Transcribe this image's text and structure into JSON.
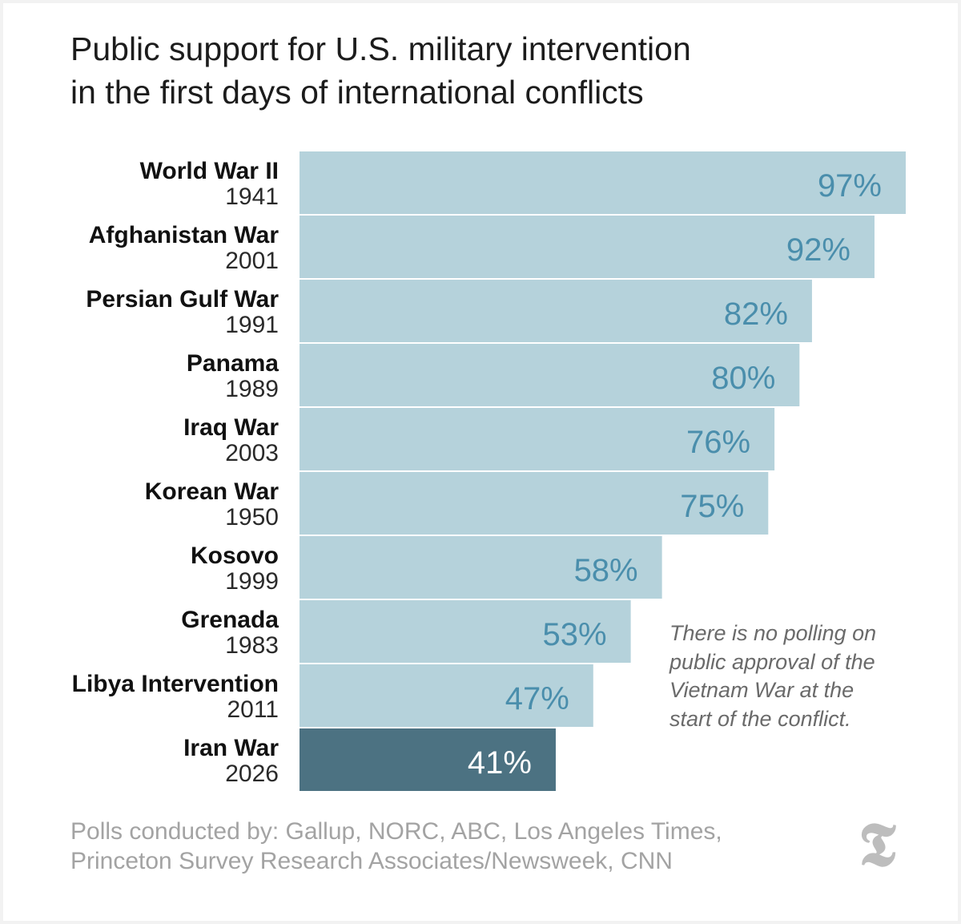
{
  "title_lines": [
    "Public support for U.S. military intervention",
    "in the first days of international conflicts"
  ],
  "note_lines": [
    "There is no polling on",
    "public approval of the",
    "Vietnam War at the",
    "start of the conflict."
  ],
  "source_lines": [
    "Polls conducted by: Gallup, NORC, ABC, Los Angeles Times,",
    "Princeton Survey Research Associates/Newsweek, CNN"
  ],
  "logo_glyph": "𝕿",
  "colors": {
    "bar": "#b5d2db",
    "bar_highlight": "#4c7282",
    "value_label": "#4a8eac",
    "value_label_highlight": "#ffffff",
    "category_label": "#111111",
    "year_label": "#2a2a2a"
  },
  "chart_data": {
    "type": "bar",
    "orientation": "horizontal",
    "title": "Public support for U.S. military intervention in the first days of international conflicts",
    "value_unit": "%",
    "xlim": [
      0,
      100
    ],
    "highlight_index": 9,
    "categories": [
      {
        "name": "World War II",
        "year": "1941",
        "value": 97
      },
      {
        "name": "Afghanistan War",
        "year": "2001",
        "value": 92
      },
      {
        "name": "Persian Gulf War",
        "year": "1991",
        "value": 82
      },
      {
        "name": "Panama",
        "year": "1989",
        "value": 80
      },
      {
        "name": "Iraq War",
        "year": "2003",
        "value": 76
      },
      {
        "name": "Korean War",
        "year": "1950",
        "value": 75
      },
      {
        "name": "Kosovo",
        "year": "1999",
        "value": 58
      },
      {
        "name": "Grenada",
        "year": "1983",
        "value": 53
      },
      {
        "name": "Libya Intervention",
        "year": "2011",
        "value": 47
      },
      {
        "name": "Iran War",
        "year": "2026",
        "value": 41
      }
    ]
  }
}
